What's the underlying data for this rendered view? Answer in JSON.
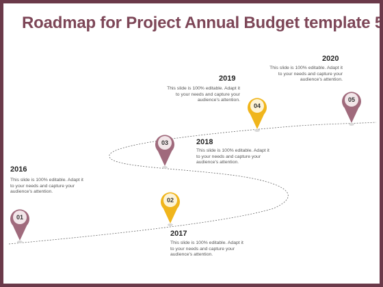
{
  "title": "Roadmap for Project Annual Budget template 5",
  "colors": {
    "frame": "#6b3a4a",
    "title": "#7d4657",
    "mauve": "#a06a7c",
    "gold": "#f0b51c"
  },
  "milestones": [
    {
      "number": "01",
      "year": "2016",
      "text": "This slide is 100% editable. Adapt it to your needs and capture your audience's attention.",
      "color": "#a06a7c"
    },
    {
      "number": "02",
      "year": "2017",
      "text": "This slide is 100% editable. Adapt it to your needs and capture your audience's attention.",
      "color": "#f0b51c"
    },
    {
      "number": "03",
      "year": "2018",
      "text": "This slide is 100% editable. Adapt it to your needs and capture your audience's attention.",
      "color": "#a06a7c"
    },
    {
      "number": "04",
      "year": "2019",
      "text": "This slide is 100% editable. Adapt it to your needs and capture your audience's attention.",
      "color": "#f0b51c"
    },
    {
      "number": "05",
      "year": "2020",
      "text": "This slide is 100% editable. Adapt it to your needs and capture your audience's attention.",
      "color": "#a06a7c"
    }
  ]
}
